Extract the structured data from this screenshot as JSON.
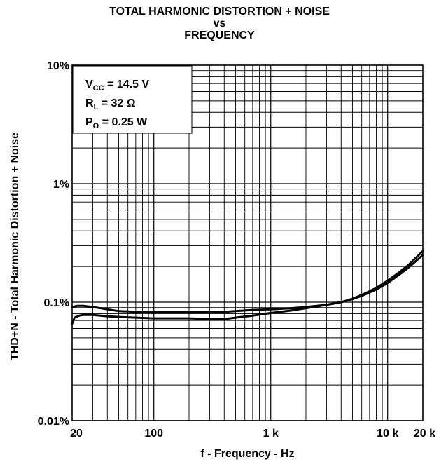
{
  "chart_data": {
    "type": "line",
    "title": [
      "TOTAL HARMONIC DISTORTION + NOISE",
      "vs",
      "FREQUENCY"
    ],
    "xlabel": "f - Frequency - Hz",
    "ylabel": "THD+N - Total Harmonic Distortion + Noise",
    "x_scale": "log",
    "y_scale": "log",
    "xlim": [
      20,
      20000
    ],
    "ylim": [
      0.01,
      10
    ],
    "grid": true,
    "x_ticks": [
      {
        "value": 20,
        "label": "20"
      },
      {
        "value": 100,
        "label": "100"
      },
      {
        "value": 1000,
        "label": "1 k"
      },
      {
        "value": 10000,
        "label": "10 k"
      },
      {
        "value": 20000,
        "label": "20 k"
      }
    ],
    "y_ticks": [
      {
        "value": 10,
        "label": "10%"
      },
      {
        "value": 1,
        "label": "1%"
      },
      {
        "value": 0.1,
        "label": "0.1%"
      },
      {
        "value": 0.01,
        "label": "0.01%"
      }
    ],
    "legend_box": {
      "placement": "top-left",
      "lines": [
        {
          "main": "V",
          "sub": "CC",
          "rest": " = 14.5 V"
        },
        {
          "main": "R",
          "sub": "L",
          "rest": " = 32 Ω"
        },
        {
          "main": "P",
          "sub": "O",
          "rest": " = 0.25 W"
        }
      ]
    },
    "series": [
      {
        "x": [
          20,
          22,
          25,
          30,
          40,
          50,
          70,
          100,
          150,
          200,
          300,
          400,
          500,
          700,
          1000,
          1500,
          2000,
          3000,
          4000,
          5000,
          6000,
          8000,
          10000,
          12000,
          15000,
          20000
        ],
        "y": [
          0.091,
          0.093,
          0.093,
          0.091,
          0.087,
          0.084,
          0.083,
          0.083,
          0.083,
          0.083,
          0.083,
          0.083,
          0.084,
          0.086,
          0.087,
          0.089,
          0.091,
          0.095,
          0.1,
          0.106,
          0.113,
          0.128,
          0.145,
          0.165,
          0.195,
          0.25
        ]
      },
      {
        "x": [
          20,
          21,
          23,
          25,
          30,
          40,
          50,
          70,
          100,
          150,
          200,
          300,
          400,
          500,
          700,
          1000,
          1500,
          2000,
          3000,
          4000,
          5000,
          6000,
          8000,
          10000,
          12000,
          15000,
          20000
        ],
        "y": [
          0.066,
          0.074,
          0.077,
          0.078,
          0.078,
          0.076,
          0.075,
          0.074,
          0.073,
          0.073,
          0.073,
          0.072,
          0.072,
          0.074,
          0.077,
          0.081,
          0.085,
          0.089,
          0.095,
          0.1,
          0.107,
          0.115,
          0.132,
          0.152,
          0.173,
          0.205,
          0.27
        ]
      }
    ]
  }
}
